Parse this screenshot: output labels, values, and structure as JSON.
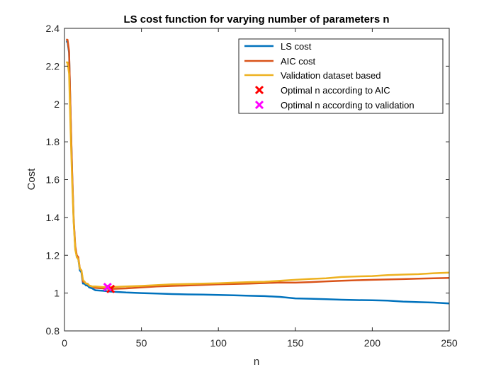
{
  "chart_data": {
    "type": "line",
    "title": "LS cost function for varying number of parameters n",
    "xlabel": "n",
    "ylabel": "Cost",
    "xlim": [
      0,
      250
    ],
    "ylim": [
      0.8,
      2.4
    ],
    "xticks": [
      "0",
      "50",
      "100",
      "150",
      "200",
      "250"
    ],
    "yticks": [
      "0.8",
      "1",
      "1.2",
      "1.4",
      "1.6",
      "1.8",
      "2",
      "2.2",
      "2.4"
    ],
    "grid": false,
    "legend_position": "top-right",
    "series": [
      {
        "name": "LS cost",
        "color": "#0072BD",
        "x": [
          1,
          2,
          3,
          4,
          5,
          6,
          7,
          8,
          9,
          10,
          11,
          12,
          13,
          14,
          15,
          16,
          18,
          20,
          25,
          30,
          40,
          50,
          60,
          70,
          80,
          90,
          100,
          110,
          120,
          130,
          140,
          150,
          160,
          170,
          180,
          190,
          200,
          210,
          220,
          230,
          240,
          250
        ],
        "y": [
          2.33,
          2.33,
          2.27,
          1.93,
          1.62,
          1.38,
          1.24,
          1.19,
          1.18,
          1.12,
          1.11,
          1.05,
          1.05,
          1.04,
          1.04,
          1.03,
          1.025,
          1.015,
          1.012,
          1.008,
          1.003,
          1.0,
          0.998,
          0.995,
          0.993,
          0.992,
          0.99,
          0.988,
          0.986,
          0.984,
          0.98,
          0.972,
          0.97,
          0.968,
          0.965,
          0.963,
          0.962,
          0.96,
          0.955,
          0.952,
          0.95,
          0.945
        ]
      },
      {
        "name": "AIC cost",
        "color": "#D95319",
        "x": [
          1,
          2,
          3,
          4,
          5,
          6,
          7,
          8,
          9,
          10,
          11,
          12,
          13,
          14,
          15,
          16,
          18,
          20,
          25,
          30,
          40,
          50,
          60,
          70,
          80,
          90,
          100,
          110,
          120,
          130,
          140,
          150,
          160,
          170,
          180,
          190,
          200,
          210,
          220,
          230,
          240,
          250
        ],
        "y": [
          2.34,
          2.34,
          2.28,
          1.94,
          1.63,
          1.39,
          1.25,
          1.2,
          1.19,
          1.13,
          1.12,
          1.06,
          1.06,
          1.05,
          1.05,
          1.04,
          1.035,
          1.028,
          1.025,
          1.022,
          1.025,
          1.03,
          1.035,
          1.038,
          1.04,
          1.043,
          1.046,
          1.048,
          1.05,
          1.053,
          1.056,
          1.055,
          1.058,
          1.062,
          1.065,
          1.068,
          1.07,
          1.072,
          1.074,
          1.076,
          1.078,
          1.08
        ]
      },
      {
        "name": "Validation dataset based",
        "color": "#EDB120",
        "x": [
          1,
          2,
          3,
          4,
          5,
          6,
          7,
          8,
          9,
          10,
          11,
          12,
          13,
          14,
          15,
          16,
          18,
          20,
          25,
          30,
          40,
          50,
          60,
          70,
          80,
          90,
          100,
          110,
          120,
          130,
          140,
          150,
          160,
          170,
          180,
          190,
          200,
          210,
          220,
          230,
          240,
          250
        ],
        "y": [
          2.22,
          2.22,
          2.16,
          1.85,
          1.58,
          1.37,
          1.23,
          1.19,
          1.18,
          1.13,
          1.12,
          1.07,
          1.06,
          1.05,
          1.05,
          1.04,
          1.035,
          1.035,
          1.032,
          1.032,
          1.035,
          1.038,
          1.042,
          1.046,
          1.048,
          1.05,
          1.052,
          1.055,
          1.058,
          1.06,
          1.065,
          1.07,
          1.075,
          1.078,
          1.085,
          1.088,
          1.09,
          1.095,
          1.098,
          1.1,
          1.105,
          1.108
        ]
      }
    ],
    "markers": [
      {
        "name": "Optimal n according to AIC",
        "color": "#FF0000",
        "x": 30,
        "y": 1.022
      },
      {
        "name": "Optimal n according to validation",
        "color": "#FF00FF",
        "x": 28,
        "y": 1.032
      }
    ]
  }
}
